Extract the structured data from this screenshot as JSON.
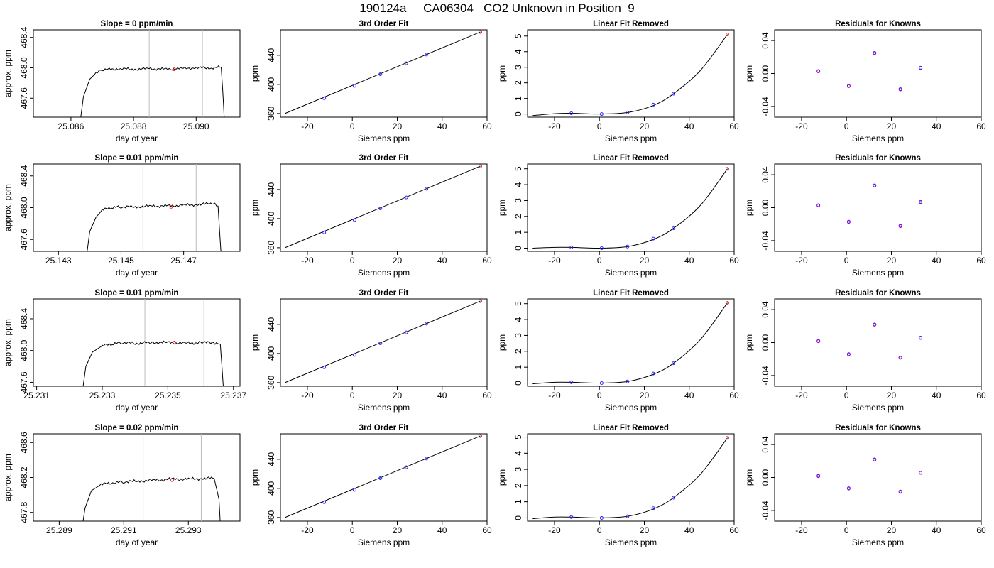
{
  "page": {
    "title": "190124a     CA06304   CO2 Unknown in Position  9"
  },
  "chart_data": [
    {
      "type": "line",
      "title": "Slope =  0  ppm/min",
      "xlabel": "day of year",
      "ylabel": "approx. ppm",
      "xlim": [
        25.0848,
        25.0914
      ],
      "ylim": [
        467.35,
        468.5
      ],
      "xticks": [
        25.086,
        25.088,
        25.09
      ],
      "xtick_labels": [
        "25.086",
        "25.088",
        "25.090"
      ],
      "yticks": [
        467.6,
        468.0,
        468.4
      ],
      "ytick_labels": [
        "467.6",
        "468.0",
        "468.4"
      ],
      "vlines": [
        25.0885,
        25.0902
      ],
      "highlight": {
        "x": 25.0893,
        "y": 467.98
      },
      "trace": [
        [
          25.0863,
          467.3
        ],
        [
          25.0864,
          467.62
        ],
        [
          25.0866,
          467.85
        ],
        [
          25.0868,
          467.93
        ],
        [
          25.087,
          467.97
        ],
        [
          25.0875,
          467.99
        ],
        [
          25.088,
          467.98
        ],
        [
          25.0885,
          467.99
        ],
        [
          25.089,
          467.98
        ],
        [
          25.0895,
          467.99
        ],
        [
          25.09,
          468.0
        ],
        [
          25.0905,
          468.0
        ],
        [
          25.0908,
          468.01
        ],
        [
          25.09085,
          467.7
        ],
        [
          25.0909,
          467.3
        ]
      ]
    },
    {
      "type": "scatter",
      "title": "3rd Order Fit",
      "xlabel": "Siemens ppm",
      "ylabel": "ppm",
      "xlim": [
        -32,
        60
      ],
      "ylim": [
        355,
        475
      ],
      "xticks": [
        -20,
        0,
        20,
        40,
        60
      ],
      "xtick_labels": [
        "-20",
        "0",
        "20",
        "40",
        "60"
      ],
      "yticks": [
        360,
        400,
        440
      ],
      "ytick_labels": [
        "360",
        "400",
        "440"
      ],
      "curve": [
        [
          -30,
          360
        ],
        [
          57,
          472
        ]
      ],
      "points": [
        [
          -12.5,
          381
        ],
        [
          1,
          398
        ],
        [
          12.5,
          414
        ],
        [
          24,
          429
        ],
        [
          33,
          441
        ]
      ],
      "unknown": {
        "x": 57,
        "y": 472
      }
    },
    {
      "type": "scatter",
      "title": "Linear Fit Removed",
      "xlabel": "Siemens ppm",
      "ylabel": "ppm",
      "xlim": [
        -32,
        60
      ],
      "ylim": [
        -0.2,
        5.4
      ],
      "xticks": [
        -20,
        0,
        20,
        40,
        60
      ],
      "xtick_labels": [
        "-20",
        "0",
        "20",
        "40",
        "60"
      ],
      "yticks": [
        0,
        1,
        2,
        3,
        4,
        5
      ],
      "ytick_labels": [
        "0",
        "1",
        "2",
        "3",
        "4",
        "5"
      ],
      "curve": [
        [
          -30,
          -0.1
        ],
        [
          -20,
          0.02
        ],
        [
          -12.5,
          0.05
        ],
        [
          0,
          0.0
        ],
        [
          12.5,
          0.1
        ],
        [
          24,
          0.55
        ],
        [
          33,
          1.3
        ],
        [
          45,
          2.8
        ],
        [
          57,
          5.1
        ]
      ],
      "points": [
        [
          -12.5,
          0.05
        ],
        [
          1,
          0.0
        ],
        [
          12.5,
          0.1
        ],
        [
          24,
          0.6
        ],
        [
          33,
          1.3
        ]
      ],
      "unknown": {
        "x": 57,
        "y": 5.1
      }
    },
    {
      "type": "scatter",
      "title": "Residuals for Knowns",
      "xlabel": "Siemens ppm",
      "ylabel": "ppm",
      "xlim": [
        -32,
        60
      ],
      "ylim": [
        -0.053,
        0.053
      ],
      "xticks": [
        -20,
        0,
        20,
        40,
        60
      ],
      "xtick_labels": [
        "-20",
        "0",
        "20",
        "40",
        "60"
      ],
      "yticks": [
        -0.04,
        0.0,
        0.04
      ],
      "ytick_labels": [
        "-0.04",
        "0.00",
        "0.04"
      ],
      "points": [
        [
          -12.5,
          0.003
        ],
        [
          1,
          -0.015
        ],
        [
          12.5,
          0.025
        ],
        [
          24,
          -0.019
        ],
        [
          33,
          0.007
        ]
      ]
    },
    {
      "type": "line",
      "title": "Slope =  0.01  ppm/min",
      "xlabel": "day of year",
      "ylabel": "approx. ppm",
      "xlim": [
        25.1422,
        25.1488
      ],
      "ylim": [
        467.45,
        468.55
      ],
      "xticks": [
        25.143,
        25.145,
        25.147
      ],
      "xtick_labels": [
        "25.143",
        "25.145",
        "25.147"
      ],
      "yticks": [
        467.6,
        468.0,
        468.4
      ],
      "ytick_labels": [
        "467.6",
        "468.0",
        "468.4"
      ],
      "vlines": [
        25.1457,
        25.1474
      ],
      "highlight": {
        "x": 25.1466,
        "y": 468.01
      },
      "trace": [
        [
          25.1439,
          467.4
        ],
        [
          25.144,
          467.7
        ],
        [
          25.1442,
          467.88
        ],
        [
          25.1444,
          467.97
        ],
        [
          25.1447,
          468.0
        ],
        [
          25.145,
          468.01
        ],
        [
          25.1455,
          468.01
        ],
        [
          25.146,
          468.02
        ],
        [
          25.1465,
          468.02
        ],
        [
          25.147,
          468.03
        ],
        [
          25.1475,
          468.04
        ],
        [
          25.148,
          468.06
        ],
        [
          25.1481,
          468.02
        ],
        [
          25.14815,
          467.7
        ],
        [
          25.1482,
          467.4
        ]
      ]
    },
    {
      "type": "scatter",
      "title": "3rd Order Fit",
      "xlabel": "Siemens ppm",
      "ylabel": "ppm",
      "xlim": [
        -32,
        60
      ],
      "ylim": [
        355,
        475
      ],
      "xticks": [
        -20,
        0,
        20,
        40,
        60
      ],
      "xtick_labels": [
        "-20",
        "0",
        "20",
        "40",
        "60"
      ],
      "yticks": [
        360,
        400,
        440
      ],
      "ytick_labels": [
        "360",
        "400",
        "440"
      ],
      "curve": [
        [
          -30,
          360
        ],
        [
          57,
          472
        ]
      ],
      "points": [
        [
          -12.5,
          381
        ],
        [
          1,
          398
        ],
        [
          12.5,
          414
        ],
        [
          24,
          429
        ],
        [
          33,
          441
        ]
      ],
      "unknown": {
        "x": 57,
        "y": 472
      }
    },
    {
      "type": "scatter",
      "title": "Linear Fit Removed",
      "xlabel": "Siemens ppm",
      "ylabel": "ppm",
      "xlim": [
        -32,
        60
      ],
      "ylim": [
        -0.2,
        5.3
      ],
      "xticks": [
        -20,
        0,
        20,
        40,
        60
      ],
      "xtick_labels": [
        "-20",
        "0",
        "20",
        "40",
        "60"
      ],
      "yticks": [
        0,
        1,
        2,
        3,
        4,
        5
      ],
      "ytick_labels": [
        "0",
        "1",
        "2",
        "3",
        "4",
        "5"
      ],
      "curve": [
        [
          -30,
          0.0
        ],
        [
          -20,
          0.05
        ],
        [
          -12.5,
          0.05
        ],
        [
          0,
          0.0
        ],
        [
          12.5,
          0.1
        ],
        [
          24,
          0.55
        ],
        [
          33,
          1.25
        ],
        [
          45,
          2.7
        ],
        [
          57,
          5.0
        ]
      ],
      "points": [
        [
          -12.5,
          0.05
        ],
        [
          1,
          0.0
        ],
        [
          12.5,
          0.1
        ],
        [
          24,
          0.6
        ],
        [
          33,
          1.25
        ]
      ],
      "unknown": {
        "x": 57,
        "y": 5.0
      }
    },
    {
      "type": "scatter",
      "title": "Residuals for Knowns",
      "xlabel": "Siemens ppm",
      "ylabel": "ppm",
      "xlim": [
        -32,
        60
      ],
      "ylim": [
        -0.053,
        0.053
      ],
      "xticks": [
        -20,
        0,
        20,
        40,
        60
      ],
      "xtick_labels": [
        "-20",
        "0",
        "20",
        "40",
        "60"
      ],
      "yticks": [
        -0.04,
        0.0,
        0.04
      ],
      "ytick_labels": [
        "-0.04",
        "0.00",
        "0.04"
      ],
      "points": [
        [
          -12.5,
          0.003
        ],
        [
          1,
          -0.017
        ],
        [
          12.5,
          0.027
        ],
        [
          24,
          -0.022
        ],
        [
          33,
          0.007
        ]
      ]
    },
    {
      "type": "line",
      "title": "Slope =  0.01  ppm/min",
      "xlabel": "day of year",
      "ylabel": "approx. ppm",
      "xlim": [
        25.2309,
        25.2372
      ],
      "ylim": [
        467.55,
        468.65
      ],
      "xticks": [
        25.231,
        25.233,
        25.235,
        25.237
      ],
      "xtick_labels": [
        "25.231",
        "25.233",
        "25.235",
        "25.237"
      ],
      "yticks": [
        467.6,
        468.0,
        468.4
      ],
      "ytick_labels": [
        "467.6",
        "468.0",
        "468.4"
      ],
      "vlines": [
        25.2343,
        25.2361
      ],
      "highlight": {
        "x": 25.2352,
        "y": 468.1
      },
      "trace": [
        [
          25.2324,
          467.5
        ],
        [
          25.2325,
          467.8
        ],
        [
          25.2327,
          467.98
        ],
        [
          25.233,
          468.06
        ],
        [
          25.2333,
          468.08
        ],
        [
          25.2336,
          468.1
        ],
        [
          25.234,
          468.09
        ],
        [
          25.2345,
          468.1
        ],
        [
          25.235,
          468.1
        ],
        [
          25.2355,
          468.09
        ],
        [
          25.236,
          468.1
        ],
        [
          25.2364,
          468.1
        ],
        [
          25.2366,
          468.08
        ],
        [
          25.23665,
          467.8
        ],
        [
          25.2367,
          467.5
        ]
      ]
    },
    {
      "type": "scatter",
      "title": "3rd Order Fit",
      "xlabel": "Siemens ppm",
      "ylabel": "ppm",
      "xlim": [
        -32,
        60
      ],
      "ylim": [
        355,
        475
      ],
      "xticks": [
        -20,
        0,
        20,
        40,
        60
      ],
      "xtick_labels": [
        "-20",
        "0",
        "20",
        "40",
        "60"
      ],
      "yticks": [
        360,
        400,
        440
      ],
      "ytick_labels": [
        "360",
        "400",
        "440"
      ],
      "curve": [
        [
          -30,
          360
        ],
        [
          57,
          472
        ]
      ],
      "points": [
        [
          -12.5,
          381
        ],
        [
          1,
          398
        ],
        [
          12.5,
          414
        ],
        [
          24,
          429
        ],
        [
          33,
          441
        ]
      ],
      "unknown": {
        "x": 57,
        "y": 472
      }
    },
    {
      "type": "scatter",
      "title": "Linear Fit Removed",
      "xlabel": "Siemens ppm",
      "ylabel": "ppm",
      "xlim": [
        -32,
        60
      ],
      "ylim": [
        -0.2,
        5.3
      ],
      "xticks": [
        -20,
        0,
        20,
        40,
        60
      ],
      "xtick_labels": [
        "-20",
        "0",
        "20",
        "40",
        "60"
      ],
      "yticks": [
        0,
        1,
        2,
        3,
        4,
        5
      ],
      "ytick_labels": [
        "0",
        "1",
        "2",
        "3",
        "4",
        "5"
      ],
      "curve": [
        [
          -30,
          -0.05
        ],
        [
          -20,
          0.05
        ],
        [
          -12.5,
          0.05
        ],
        [
          0,
          0.0
        ],
        [
          12.5,
          0.1
        ],
        [
          24,
          0.55
        ],
        [
          33,
          1.25
        ],
        [
          45,
          2.75
        ],
        [
          57,
          5.05
        ]
      ],
      "points": [
        [
          -12.5,
          0.05
        ],
        [
          1,
          0.0
        ],
        [
          12.5,
          0.1
        ],
        [
          24,
          0.6
        ],
        [
          33,
          1.25
        ]
      ],
      "unknown": {
        "x": 57,
        "y": 5.05
      }
    },
    {
      "type": "scatter",
      "title": "Residuals for Knowns",
      "xlabel": "Siemens ppm",
      "ylabel": "ppm",
      "xlim": [
        -32,
        60
      ],
      "ylim": [
        -0.053,
        0.053
      ],
      "xticks": [
        -20,
        0,
        20,
        40,
        60
      ],
      "xtick_labels": [
        "-20",
        "0",
        "20",
        "40",
        "60"
      ],
      "yticks": [
        -0.04,
        0.0,
        0.04
      ],
      "ytick_labels": [
        "-0.04",
        "0.00",
        "0.04"
      ],
      "points": [
        [
          -12.5,
          0.002
        ],
        [
          1,
          -0.014
        ],
        [
          12.5,
          0.022
        ],
        [
          24,
          -0.018
        ],
        [
          33,
          0.006
        ]
      ]
    },
    {
      "type": "line",
      "title": "Slope =  0.02  ppm/min",
      "xlabel": "day of year",
      "ylabel": "approx. ppm",
      "xlim": [
        25.2882,
        25.2946
      ],
      "ylim": [
        467.7,
        468.7
      ],
      "xticks": [
        25.289,
        25.291,
        25.293
      ],
      "xtick_labels": [
        "25.289",
        "25.291",
        "25.293"
      ],
      "yticks": [
        467.8,
        468.2,
        468.6
      ],
      "ytick_labels": [
        "467.8",
        "468.2",
        "468.6"
      ],
      "vlines": [
        25.2916,
        25.2934
      ],
      "highlight": {
        "x": 25.2925,
        "y": 468.17
      },
      "trace": [
        [
          25.2897,
          467.6
        ],
        [
          25.2898,
          467.85
        ],
        [
          25.29,
          468.05
        ],
        [
          25.2903,
          468.12
        ],
        [
          25.2907,
          468.14
        ],
        [
          25.291,
          468.15
        ],
        [
          25.2915,
          468.16
        ],
        [
          25.292,
          468.17
        ],
        [
          25.2925,
          468.18
        ],
        [
          25.293,
          468.18
        ],
        [
          25.2935,
          468.19
        ],
        [
          25.2938,
          468.19
        ],
        [
          25.29395,
          467.95
        ],
        [
          25.294,
          467.6
        ]
      ]
    },
    {
      "type": "scatter",
      "title": "3rd Order Fit",
      "xlabel": "Siemens ppm",
      "ylabel": "ppm",
      "xlim": [
        -32,
        60
      ],
      "ylim": [
        355,
        475
      ],
      "xticks": [
        -20,
        0,
        20,
        40,
        60
      ],
      "xtick_labels": [
        "-20",
        "0",
        "20",
        "40",
        "60"
      ],
      "yticks": [
        360,
        400,
        440
      ],
      "ytick_labels": [
        "360",
        "400",
        "440"
      ],
      "curve": [
        [
          -30,
          360
        ],
        [
          57,
          472
        ]
      ],
      "points": [
        [
          -12.5,
          381
        ],
        [
          1,
          398
        ],
        [
          12.5,
          414
        ],
        [
          24,
          429
        ],
        [
          33,
          441
        ]
      ],
      "unknown": {
        "x": 57,
        "y": 472
      }
    },
    {
      "type": "scatter",
      "title": "Linear Fit Removed",
      "xlabel": "Siemens ppm",
      "ylabel": "ppm",
      "xlim": [
        -32,
        60
      ],
      "ylim": [
        -0.2,
        5.2
      ],
      "xticks": [
        -20,
        0,
        20,
        40,
        60
      ],
      "xtick_labels": [
        "-20",
        "0",
        "20",
        "40",
        "60"
      ],
      "yticks": [
        0,
        1,
        2,
        3,
        4,
        5
      ],
      "ytick_labels": [
        "0",
        "1",
        "2",
        "3",
        "4",
        "5"
      ],
      "curve": [
        [
          -30,
          -0.05
        ],
        [
          -20,
          0.05
        ],
        [
          -12.5,
          0.05
        ],
        [
          0,
          0.0
        ],
        [
          12.5,
          0.1
        ],
        [
          24,
          0.55
        ],
        [
          33,
          1.25
        ],
        [
          45,
          2.7
        ],
        [
          57,
          4.95
        ]
      ],
      "points": [
        [
          -12.5,
          0.05
        ],
        [
          1,
          0.0
        ],
        [
          12.5,
          0.1
        ],
        [
          24,
          0.6
        ],
        [
          33,
          1.25
        ]
      ],
      "unknown": {
        "x": 57,
        "y": 4.95
      }
    },
    {
      "type": "scatter",
      "title": "Residuals for Knowns",
      "xlabel": "Siemens ppm",
      "ylabel": "ppm",
      "xlim": [
        -32,
        60
      ],
      "ylim": [
        -0.053,
        0.053
      ],
      "xticks": [
        -20,
        0,
        20,
        40,
        60
      ],
      "xtick_labels": [
        "-20",
        "0",
        "20",
        "40",
        "60"
      ],
      "yticks": [
        -0.04,
        0.0,
        0.04
      ],
      "ytick_labels": [
        "-0.04",
        "0.00",
        "0.04"
      ],
      "points": [
        [
          -12.5,
          0.002
        ],
        [
          1,
          -0.013
        ],
        [
          12.5,
          0.022
        ],
        [
          24,
          -0.017
        ],
        [
          33,
          0.006
        ]
      ]
    }
  ]
}
